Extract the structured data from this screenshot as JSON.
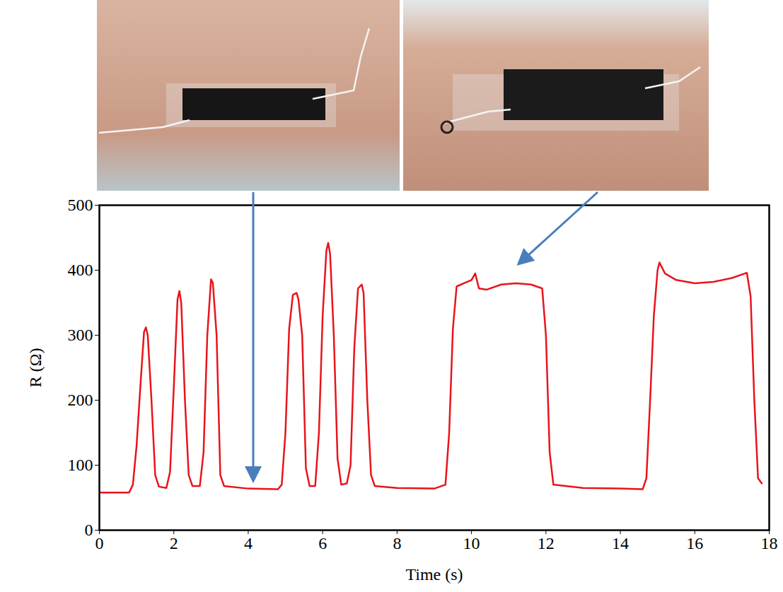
{
  "chart_data": {
    "type": "line",
    "x_label": "Time (s)",
    "y_label": "R (Ω)",
    "xlim": [
      0,
      18
    ],
    "xticks": [
      0,
      2,
      4,
      6,
      8,
      10,
      12,
      14,
      16,
      18
    ],
    "ylim": [
      0,
      500
    ],
    "yticks": [
      0,
      100,
      200,
      300,
      400,
      500
    ],
    "grid": false,
    "color": "#e8141b",
    "x": [
      0,
      0.8,
      0.9,
      1.0,
      1.1,
      1.2,
      1.25,
      1.3,
      1.4,
      1.5,
      1.6,
      1.8,
      1.9,
      2.0,
      2.1,
      2.15,
      2.2,
      2.3,
      2.4,
      2.5,
      2.7,
      2.8,
      2.9,
      3.0,
      3.05,
      3.15,
      3.25,
      3.35,
      4.0,
      4.8,
      4.9,
      5.0,
      5.1,
      5.2,
      5.3,
      5.35,
      5.45,
      5.55,
      5.65,
      5.8,
      5.9,
      6.0,
      6.1,
      6.15,
      6.2,
      6.3,
      6.4,
      6.5,
      6.65,
      6.75,
      6.85,
      6.95,
      7.05,
      7.1,
      7.2,
      7.3,
      7.4,
      8.0,
      9.0,
      9.3,
      9.4,
      9.5,
      9.6,
      9.8,
      10.0,
      10.1,
      10.2,
      10.4,
      10.8,
      11.2,
      11.6,
      11.9,
      12.0,
      12.1,
      12.2,
      13.0,
      14.0,
      14.6,
      14.7,
      14.8,
      14.9,
      15.0,
      15.05,
      15.2,
      15.5,
      16.0,
      16.5,
      17.0,
      17.4,
      17.5,
      17.6,
      17.7,
      17.8
    ],
    "values": [
      58,
      58,
      70,
      130,
      220,
      305,
      312,
      300,
      200,
      85,
      67,
      65,
      90,
      220,
      355,
      368,
      350,
      200,
      85,
      68,
      68,
      120,
      300,
      386,
      380,
      300,
      85,
      68,
      64,
      63,
      70,
      150,
      310,
      362,
      365,
      355,
      300,
      95,
      68,
      68,
      150,
      330,
      430,
      442,
      425,
      300,
      110,
      70,
      72,
      100,
      280,
      372,
      378,
      365,
      200,
      85,
      68,
      65,
      64,
      70,
      150,
      310,
      375,
      380,
      385,
      395,
      372,
      370,
      378,
      380,
      378,
      372,
      300,
      120,
      70,
      65,
      64,
      63,
      80,
      200,
      330,
      400,
      412,
      395,
      385,
      380,
      382,
      388,
      396,
      360,
      200,
      80,
      72
    ]
  }
}
